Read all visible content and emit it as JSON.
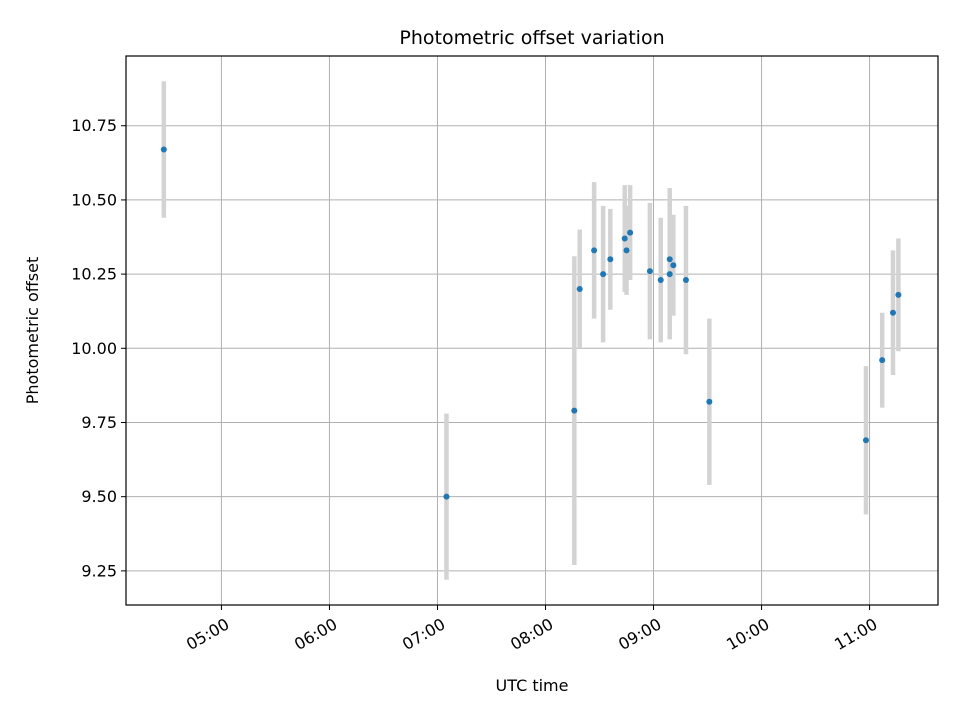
{
  "chart_data": {
    "type": "scatter",
    "title": "Photometric offset variation",
    "xlabel": "UTC time",
    "ylabel": "Photometric offset",
    "x_unit": "time of day (UTC)",
    "xlim": [
      "04:07",
      "11:38"
    ],
    "ylim": [
      9.135,
      10.985
    ],
    "x_ticks": [
      "05:00",
      "06:00",
      "07:00",
      "08:00",
      "09:00",
      "10:00",
      "11:00"
    ],
    "y_ticks": [
      9.25,
      9.5,
      9.75,
      10.0,
      10.25,
      10.5,
      10.75
    ],
    "y_tick_labels": [
      "9.25",
      "9.50",
      "9.75",
      "10.00",
      "10.25",
      "10.50",
      "10.75"
    ],
    "grid": true,
    "colors": {
      "point": "#1f77b4",
      "errorbar": "#d3d3d3",
      "grid": "#b0b0b0"
    },
    "points": [
      {
        "t": "04:28",
        "y": 10.67,
        "err": 0.23
      },
      {
        "t": "07:05",
        "y": 9.5,
        "err": 0.28
      },
      {
        "t": "08:16",
        "y": 9.79,
        "err": 0.52
      },
      {
        "t": "08:19",
        "y": 10.2,
        "err": 0.2
      },
      {
        "t": "08:27",
        "y": 10.33,
        "err": 0.23
      },
      {
        "t": "08:32",
        "y": 10.25,
        "err": 0.23
      },
      {
        "t": "08:36",
        "y": 10.3,
        "err": 0.17
      },
      {
        "t": "08:44",
        "y": 10.37,
        "err": 0.18
      },
      {
        "t": "08:45",
        "y": 10.33,
        "err": 0.15
      },
      {
        "t": "08:47",
        "y": 10.39,
        "err": 0.16
      },
      {
        "t": "08:58",
        "y": 10.26,
        "err": 0.23
      },
      {
        "t": "09:04",
        "y": 10.23,
        "err": 0.21
      },
      {
        "t": "09:09",
        "y": 10.3,
        "err": 0.24
      },
      {
        "t": "09:09",
        "y": 10.25,
        "err": 0.22
      },
      {
        "t": "09:11",
        "y": 10.28,
        "err": 0.17
      },
      {
        "t": "09:18",
        "y": 10.23,
        "err": 0.25
      },
      {
        "t": "09:31",
        "y": 9.82,
        "err": 0.28
      },
      {
        "t": "10:58",
        "y": 9.69,
        "err": 0.25
      },
      {
        "t": "11:07",
        "y": 9.96,
        "err": 0.16
      },
      {
        "t": "11:13",
        "y": 10.12,
        "err": 0.21
      },
      {
        "t": "11:16",
        "y": 10.18,
        "err": 0.19
      }
    ]
  }
}
